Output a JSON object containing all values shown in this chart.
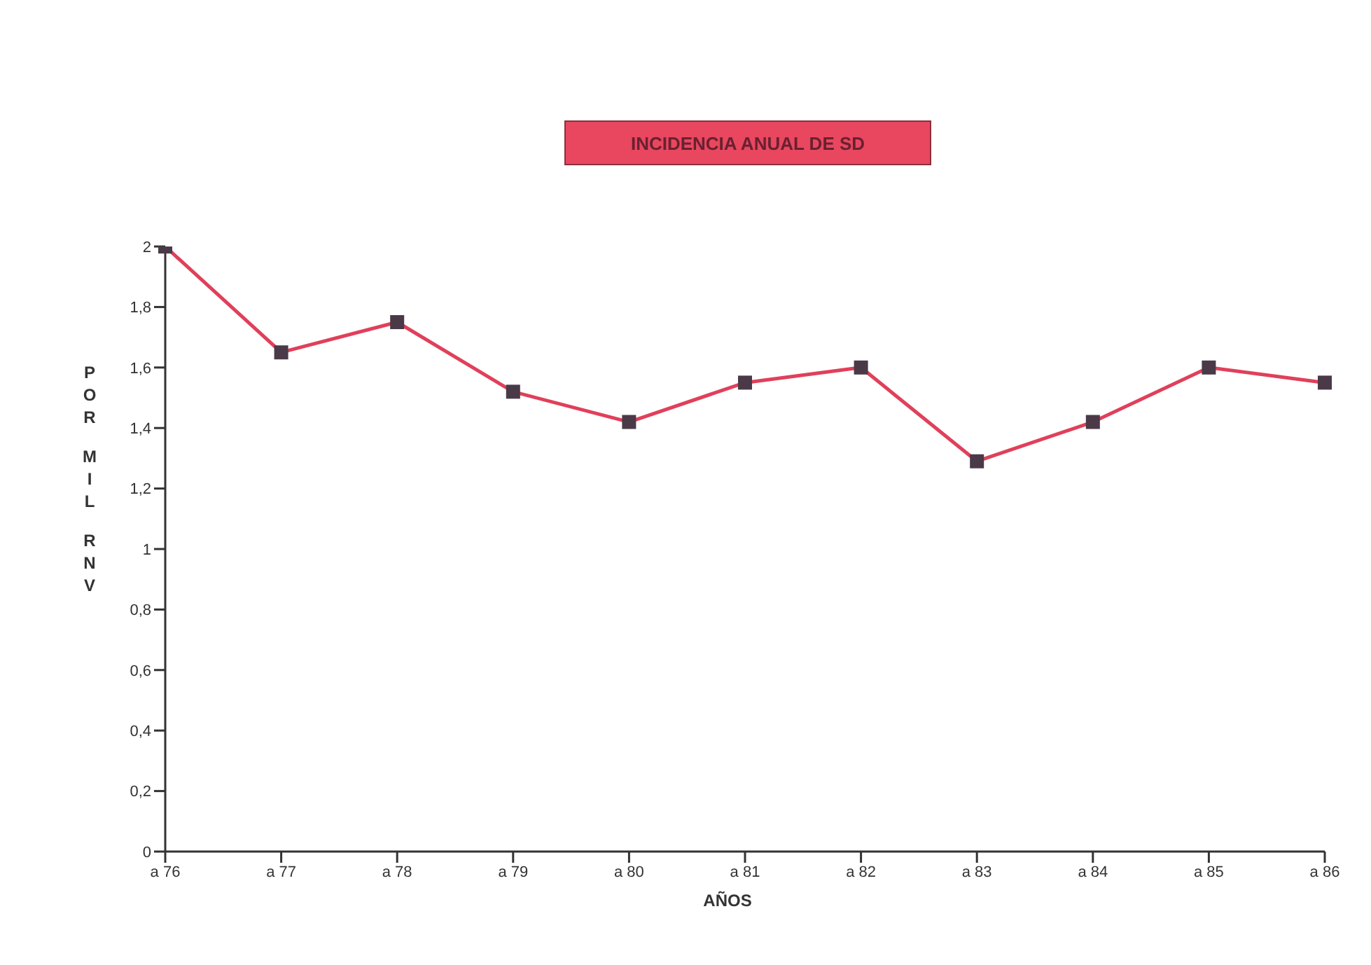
{
  "chart_data": {
    "type": "line",
    "title": "INCIDENCIA ANUAL DE SD",
    "xlabel": "AÑOS",
    "ylabel": "POR MIL RNV",
    "categories": [
      "a 76",
      "a 77",
      "a 78",
      "a 79",
      "a 80",
      "a 81",
      "a 82",
      "a 83",
      "a 84",
      "a 85",
      "a 86"
    ],
    "series": [
      {
        "color": "#e0405a",
        "values": [
          2.0,
          1.65,
          1.75,
          1.52,
          1.42,
          1.55,
          1.6,
          1.29,
          1.42,
          1.6,
          1.55
        ]
      }
    ],
    "ylim": [
      0,
      2
    ],
    "yticks": [
      0,
      {
        "value": 0.2,
        "label": "0,2"
      },
      {
        "value": 0.4,
        "label": "0,4"
      },
      {
        "value": 0.6,
        "label": "0,6"
      },
      {
        "value": 0.8,
        "label": "0,8"
      },
      1,
      {
        "value": 1.2,
        "label": "1,2"
      },
      {
        "value": 1.4,
        "label": "1,4"
      },
      {
        "value": 1.6,
        "label": "1,6"
      },
      {
        "value": 1.8,
        "label": "1,8"
      },
      2
    ],
    "grid": false,
    "legend": false,
    "marker": "square",
    "line_style": "solid"
  }
}
